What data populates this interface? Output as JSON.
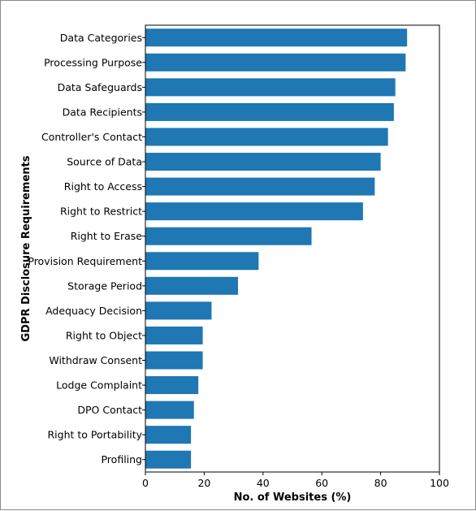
{
  "chart_data": {
    "type": "bar",
    "orientation": "horizontal",
    "title": "",
    "xlabel": "No. of Websites (%)",
    "ylabel": "GDPR Disclosure Requirements",
    "xlim": [
      0,
      100
    ],
    "xticks": [
      "0",
      "20",
      "40",
      "60",
      "80",
      "100"
    ],
    "grid": false,
    "bar_color": "#1f77b4",
    "categories": [
      "Data Categories",
      "Processing Purpose",
      "Data Safeguards",
      "Data Recipients",
      "Controller's Contact",
      "Source of Data",
      "Right to Access",
      "Right to Restrict",
      "Right to Erase",
      "Provision Requirement",
      "Storage Period",
      "Adequacy Decision",
      "Right to Object",
      "Withdraw Consent",
      "Lodge Complaint",
      "DPO Contact",
      "Right to Portability",
      "Profiling"
    ],
    "values": [
      89,
      88.5,
      85,
      84.5,
      82.5,
      80,
      78,
      74,
      56.5,
      38.5,
      31.5,
      22.5,
      19.5,
      19.5,
      18,
      16.5,
      15.5,
      15.5
    ]
  }
}
